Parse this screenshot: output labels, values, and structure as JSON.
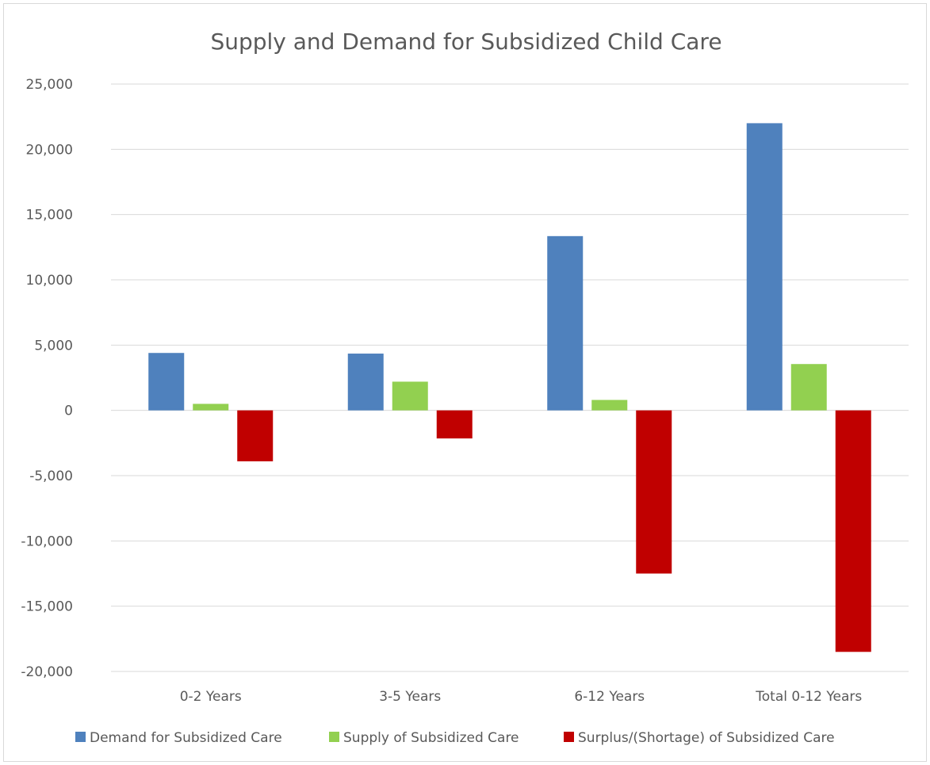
{
  "chart_data": {
    "type": "bar",
    "title": "Supply and Demand for Subsidized Child Care",
    "xlabel": "",
    "ylabel": "",
    "categories": [
      "0-2 Years",
      "3-5 Years",
      "6-12 Years",
      "Total 0-12 Years"
    ],
    "series": [
      {
        "name": "Demand for Subsidized Care",
        "color": "#4f81bd",
        "values": [
          4400,
          4350,
          13350,
          22000
        ]
      },
      {
        "name": "Supply of Subsidized Care",
        "color": "#92d050",
        "values": [
          500,
          2200,
          800,
          3550
        ]
      },
      {
        "name": "Surplus/(Shortage) of Subsidized Care",
        "color": "#c00000",
        "values": [
          -3900,
          -2150,
          -12500,
          -18500
        ]
      }
    ],
    "ylim": [
      -20000,
      25000
    ],
    "yticks": [
      25000,
      20000,
      15000,
      10000,
      5000,
      0,
      -5000,
      -10000,
      -15000,
      -20000
    ],
    "ytick_labels": [
      "25,000",
      "20,000",
      "15,000",
      "10,000",
      "5,000",
      "0",
      "-5,000",
      "-10,000",
      "-15,000",
      "-20,000"
    ],
    "grid": true,
    "legend_position": "bottom"
  }
}
